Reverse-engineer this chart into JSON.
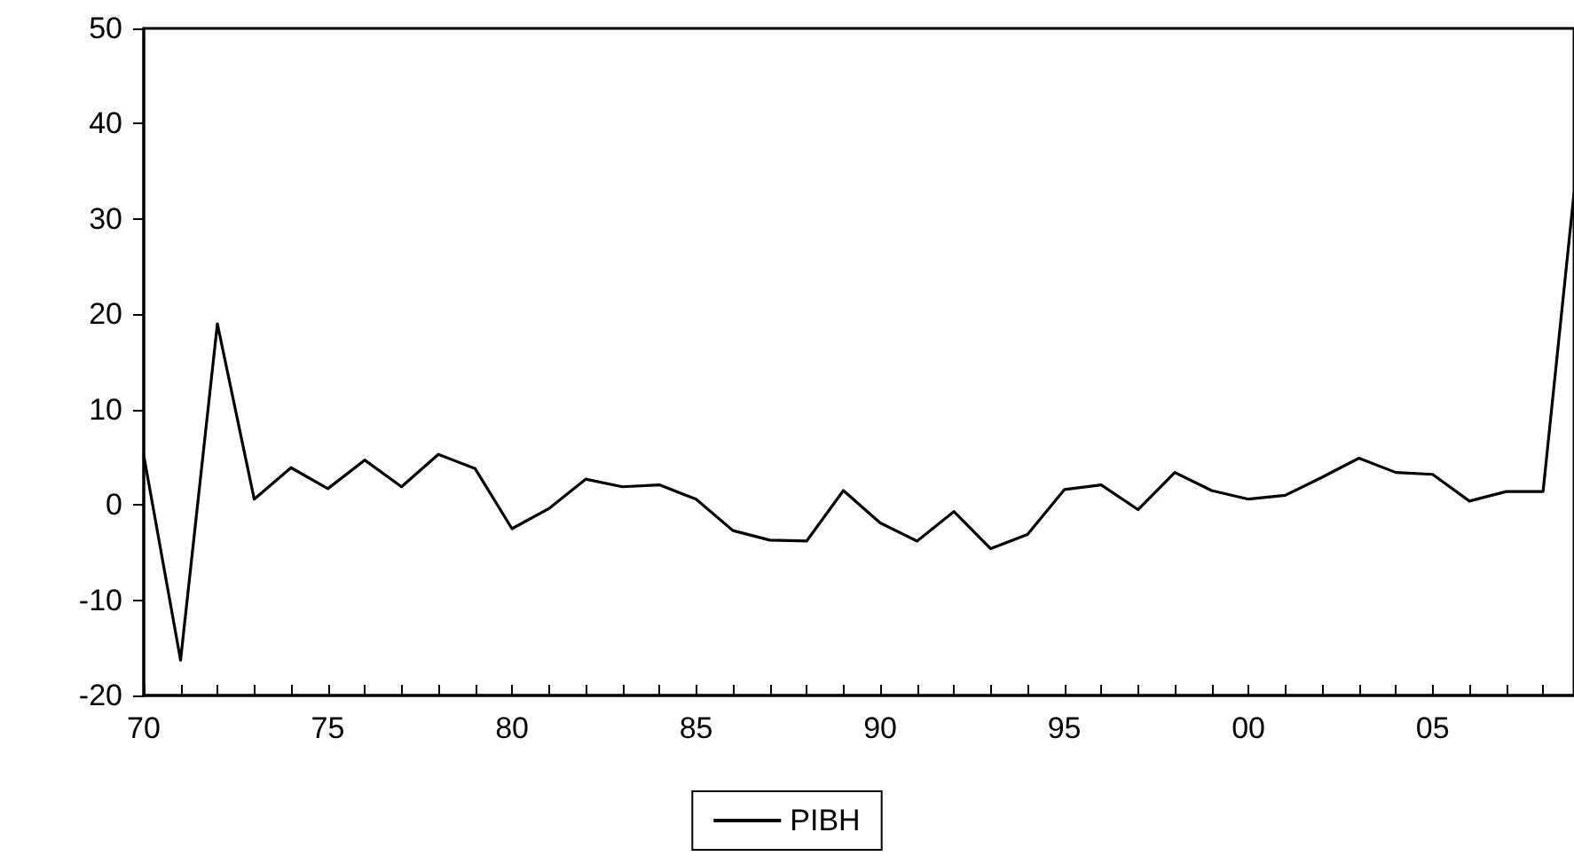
{
  "chart_data": {
    "type": "line",
    "legend": "bottom",
    "grid": false,
    "marker": "none",
    "line_style": "solid",
    "x": [
      1970,
      1971,
      1972,
      1973,
      1974,
      1975,
      1976,
      1977,
      1978,
      1979,
      1980,
      1981,
      1982,
      1983,
      1984,
      1985,
      1986,
      1987,
      1988,
      1989,
      1990,
      1991,
      1992,
      1993,
      1994,
      1995,
      1996,
      1997,
      1998,
      1999,
      2000,
      2001,
      2002,
      2003,
      2004,
      2005,
      2006,
      2007,
      2008,
      2008.84
    ],
    "series": [
      {
        "name": "PIBH",
        "color": "#000000",
        "values": [
          5.2,
          -16.3,
          19.0,
          0.6,
          3.9,
          1.7,
          4.7,
          1.9,
          5.3,
          3.8,
          -2.5,
          -0.4,
          2.7,
          1.9,
          2.1,
          0.6,
          -2.7,
          -3.7,
          -3.8,
          1.5,
          -1.9,
          -3.8,
          -0.7,
          -4.6,
          -3.1,
          1.6,
          2.1,
          -0.5,
          3.4,
          1.5,
          0.6,
          1.0,
          2.9,
          4.9,
          3.4,
          3.2,
          0.4,
          1.4,
          1.4,
          32.7
        ]
      }
    ],
    "xlim": [
      1970,
      2008.84
    ],
    "xticks": [
      {
        "value": 1970,
        "label": "70"
      },
      {
        "value": 1971,
        "label": null
      },
      {
        "value": 1972,
        "label": null
      },
      {
        "value": 1973,
        "label": null
      },
      {
        "value": 1974,
        "label": null
      },
      {
        "value": 1975,
        "label": "75"
      },
      {
        "value": 1976,
        "label": null
      },
      {
        "value": 1977,
        "label": null
      },
      {
        "value": 1978,
        "label": null
      },
      {
        "value": 1979,
        "label": null
      },
      {
        "value": 1980,
        "label": "80"
      },
      {
        "value": 1981,
        "label": null
      },
      {
        "value": 1982,
        "label": null
      },
      {
        "value": 1983,
        "label": null
      },
      {
        "value": 1984,
        "label": null
      },
      {
        "value": 1985,
        "label": "85"
      },
      {
        "value": 1986,
        "label": null
      },
      {
        "value": 1987,
        "label": null
      },
      {
        "value": 1988,
        "label": null
      },
      {
        "value": 1989,
        "label": null
      },
      {
        "value": 1990,
        "label": "90"
      },
      {
        "value": 1991,
        "label": null
      },
      {
        "value": 1992,
        "label": null
      },
      {
        "value": 1993,
        "label": null
      },
      {
        "value": 1994,
        "label": null
      },
      {
        "value": 1995,
        "label": "95"
      },
      {
        "value": 1996,
        "label": null
      },
      {
        "value": 1997,
        "label": null
      },
      {
        "value": 1998,
        "label": null
      },
      {
        "value": 1999,
        "label": null
      },
      {
        "value": 2000,
        "label": "00"
      },
      {
        "value": 2001,
        "label": null
      },
      {
        "value": 2002,
        "label": null
      },
      {
        "value": 2003,
        "label": null
      },
      {
        "value": 2004,
        "label": null
      },
      {
        "value": 2005,
        "label": "05"
      },
      {
        "value": 2006,
        "label": null
      },
      {
        "value": 2007,
        "label": null
      },
      {
        "value": 2008,
        "label": null
      }
    ],
    "ylim": [
      -20,
      50
    ],
    "yticks": [
      -20,
      -10,
      0,
      10,
      20,
      30,
      40,
      50
    ]
  }
}
